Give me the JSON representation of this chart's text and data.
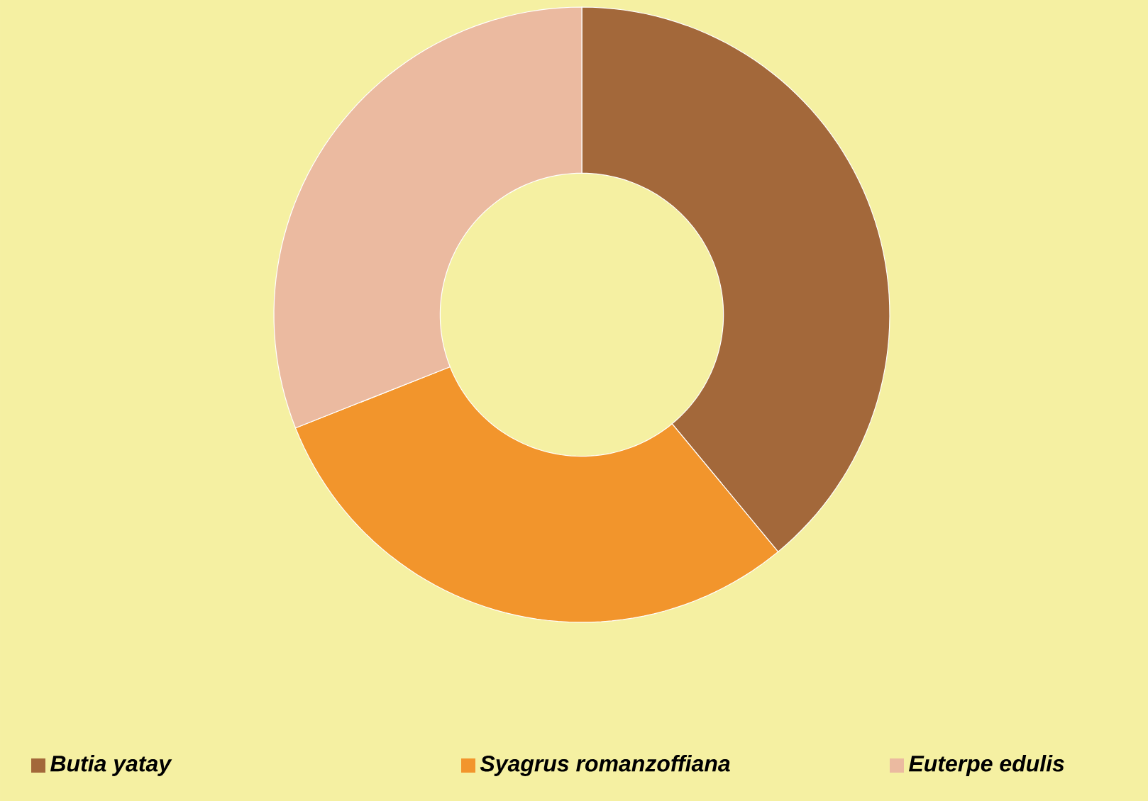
{
  "chart_data": {
    "type": "donut",
    "categories": [
      "Butia yatay",
      "Syagrus romanzoffiana",
      "Euterpe edulis"
    ],
    "values": [
      39,
      30,
      31
    ],
    "colors": [
      "#a3683a",
      "#f2952c",
      "#ebbaa0"
    ],
    "legend": "bottom"
  }
}
